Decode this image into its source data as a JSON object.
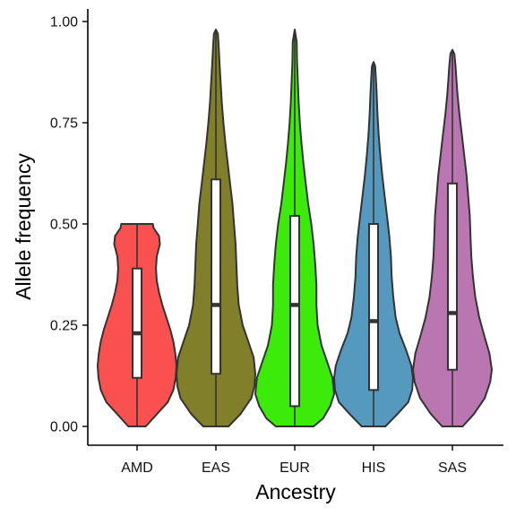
{
  "chart_data": {
    "type": "violin",
    "xlabel": "Ancestry",
    "ylabel": "Allele frequency",
    "ylim": [
      0,
      1
    ],
    "yticks": [
      "0.00",
      "0.25",
      "0.50",
      "0.75",
      "1.00"
    ],
    "categories": [
      "AMD",
      "EAS",
      "EUR",
      "HIS",
      "SAS"
    ],
    "colors": [
      "#FB5050",
      "#827F2A",
      "#3CEB0A",
      "#5599BE",
      "#BA76B1"
    ],
    "grid": false,
    "legend": "none",
    "series": [
      {
        "category": "AMD",
        "min": 0.0,
        "q1": 0.12,
        "median": 0.23,
        "q3": 0.39,
        "max": 0.5,
        "density": [
          [
            0.0,
            0.22
          ],
          [
            0.03,
            0.5
          ],
          [
            0.06,
            0.78
          ],
          [
            0.09,
            0.92
          ],
          [
            0.12,
            0.98
          ],
          [
            0.15,
            1.0
          ],
          [
            0.18,
            0.97
          ],
          [
            0.21,
            0.92
          ],
          [
            0.24,
            0.84
          ],
          [
            0.27,
            0.74
          ],
          [
            0.3,
            0.64
          ],
          [
            0.33,
            0.56
          ],
          [
            0.36,
            0.5
          ],
          [
            0.39,
            0.48
          ],
          [
            0.42,
            0.5
          ],
          [
            0.45,
            0.58
          ],
          [
            0.47,
            0.56
          ],
          [
            0.49,
            0.42
          ],
          [
            0.5,
            0.4
          ]
        ]
      },
      {
        "category": "EAS",
        "min": 0.0,
        "q1": 0.13,
        "median": 0.3,
        "q3": 0.61,
        "max": 0.98,
        "density": [
          [
            0.0,
            0.32
          ],
          [
            0.03,
            0.62
          ],
          [
            0.07,
            0.9
          ],
          [
            0.1,
            0.98
          ],
          [
            0.13,
            1.0
          ],
          [
            0.17,
            0.96
          ],
          [
            0.21,
            0.82
          ],
          [
            0.25,
            0.68
          ],
          [
            0.3,
            0.58
          ],
          [
            0.35,
            0.54
          ],
          [
            0.4,
            0.52
          ],
          [
            0.45,
            0.5
          ],
          [
            0.5,
            0.46
          ],
          [
            0.55,
            0.42
          ],
          [
            0.6,
            0.36
          ],
          [
            0.65,
            0.3
          ],
          [
            0.7,
            0.24
          ],
          [
            0.75,
            0.19
          ],
          [
            0.8,
            0.15
          ],
          [
            0.85,
            0.12
          ],
          [
            0.9,
            0.09
          ],
          [
            0.94,
            0.07
          ],
          [
            0.97,
            0.05
          ],
          [
            0.98,
            0.0
          ]
        ]
      },
      {
        "category": "EUR",
        "min": 0.0,
        "q1": 0.05,
        "median": 0.3,
        "q3": 0.52,
        "max": 0.98,
        "density": [
          [
            0.0,
            0.48
          ],
          [
            0.02,
            0.72
          ],
          [
            0.05,
            0.9
          ],
          [
            0.08,
            1.0
          ],
          [
            0.12,
            0.96
          ],
          [
            0.16,
            0.82
          ],
          [
            0.2,
            0.68
          ],
          [
            0.25,
            0.58
          ],
          [
            0.3,
            0.55
          ],
          [
            0.35,
            0.55
          ],
          [
            0.4,
            0.52
          ],
          [
            0.45,
            0.48
          ],
          [
            0.5,
            0.42
          ],
          [
            0.55,
            0.34
          ],
          [
            0.6,
            0.28
          ],
          [
            0.65,
            0.22
          ],
          [
            0.7,
            0.17
          ],
          [
            0.75,
            0.13
          ],
          [
            0.8,
            0.1
          ],
          [
            0.85,
            0.08
          ],
          [
            0.9,
            0.06
          ],
          [
            0.95,
            0.05
          ],
          [
            0.98,
            0.0
          ]
        ]
      },
      {
        "category": "HIS",
        "min": 0.0,
        "q1": 0.09,
        "median": 0.26,
        "q3": 0.5,
        "max": 0.9,
        "density": [
          [
            0.0,
            0.3
          ],
          [
            0.03,
            0.6
          ],
          [
            0.06,
            0.88
          ],
          [
            0.09,
            0.98
          ],
          [
            0.12,
            1.0
          ],
          [
            0.15,
            0.96
          ],
          [
            0.19,
            0.82
          ],
          [
            0.23,
            0.66
          ],
          [
            0.27,
            0.56
          ],
          [
            0.32,
            0.5
          ],
          [
            0.37,
            0.46
          ],
          [
            0.42,
            0.44
          ],
          [
            0.47,
            0.4
          ],
          [
            0.52,
            0.34
          ],
          [
            0.57,
            0.28
          ],
          [
            0.62,
            0.22
          ],
          [
            0.67,
            0.17
          ],
          [
            0.72,
            0.13
          ],
          [
            0.77,
            0.1
          ],
          [
            0.82,
            0.08
          ],
          [
            0.86,
            0.06
          ],
          [
            0.89,
            0.04
          ],
          [
            0.9,
            0.0
          ]
        ]
      },
      {
        "category": "SAS",
        "min": 0.0,
        "q1": 0.14,
        "median": 0.28,
        "q3": 0.6,
        "max": 0.93,
        "density": [
          [
            0.0,
            0.26
          ],
          [
            0.03,
            0.54
          ],
          [
            0.07,
            0.82
          ],
          [
            0.11,
            0.96
          ],
          [
            0.14,
            1.0
          ],
          [
            0.18,
            0.94
          ],
          [
            0.22,
            0.82
          ],
          [
            0.27,
            0.68
          ],
          [
            0.32,
            0.58
          ],
          [
            0.37,
            0.52
          ],
          [
            0.42,
            0.48
          ],
          [
            0.47,
            0.46
          ],
          [
            0.52,
            0.44
          ],
          [
            0.57,
            0.4
          ],
          [
            0.62,
            0.36
          ],
          [
            0.67,
            0.3
          ],
          [
            0.72,
            0.24
          ],
          [
            0.77,
            0.18
          ],
          [
            0.82,
            0.13
          ],
          [
            0.86,
            0.1
          ],
          [
            0.89,
            0.08
          ],
          [
            0.92,
            0.05
          ],
          [
            0.93,
            0.0
          ]
        ]
      }
    ]
  }
}
